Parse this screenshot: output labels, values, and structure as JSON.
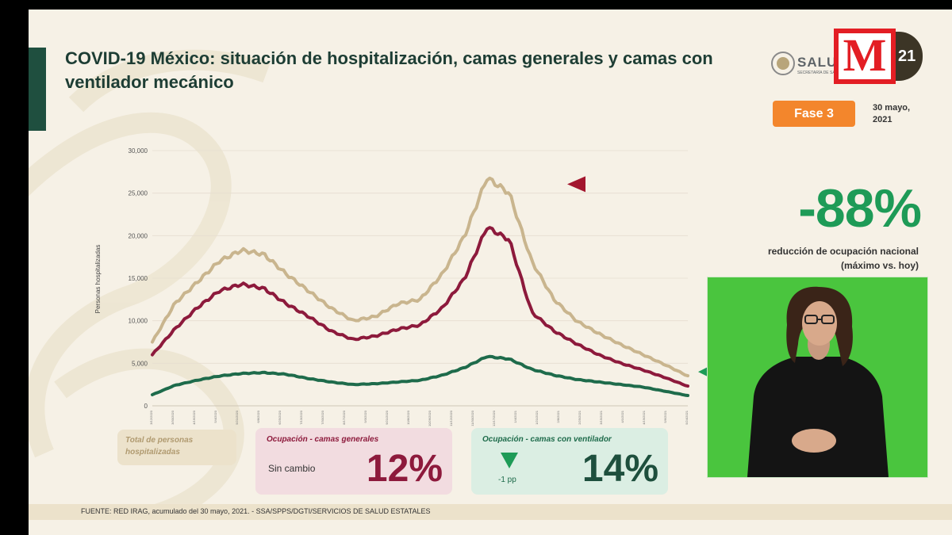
{
  "slide": {
    "title": "COVID-19 México: situación de hospitalización, camas generales y camas con ventilador mecánico",
    "logo_text": "SALUD",
    "logo_subtext": "SECRETARÍA DE SALUD",
    "phase": "Fase 3",
    "date": "30 mayo, 2021",
    "big_percentage": "-88%",
    "big_caption_line1": "reducción de ocupación nacional",
    "big_caption_line2": "(máximo vs. hoy)",
    "footer": "FUENTE: RED IRAG, acumulado del 30 mayo, 2021.  -  SSA/SPPS/DGTI/SERVICIOS DE SALUD ESTATALES"
  },
  "cards": {
    "total_label": "Total de personas hospitalizadas",
    "general_title": "Ocupación - camas generales",
    "general_status": "Sin cambio",
    "general_pct": "12%",
    "vent_title": "Ocupación - camas con ventilador",
    "vent_change": "-1 pp",
    "vent_pct": "14%"
  },
  "broadcast": {
    "channel_letter": "M",
    "bug_number": "21"
  },
  "colors": {
    "total": "#c9b58e",
    "general": "#8d1a3c",
    "ventilator": "#1e6b4b",
    "accent_green": "#1e9b57",
    "phase_orange": "#f3862c",
    "marker_red": "#a3162e"
  },
  "chart_data": {
    "type": "line",
    "ylabel": "Personas hospitalizadas",
    "ylim": [
      0,
      30000
    ],
    "y_ticks": [
      "30,000",
      "25,000",
      "20,000",
      "15,000",
      "10,000",
      "5,000",
      "0"
    ],
    "x_tick_labels": [
      "3/12/2020",
      "3/30/2020",
      "4/16/2020",
      "5/4/2020",
      "5/21/2020",
      "6/8/2020",
      "6/25/2020",
      "7/13/2020",
      "7/30/2020",
      "8/17/2020",
      "9/3/2020",
      "9/21/2020",
      "10/8/2020",
      "10/26/2020",
      "11/12/2020",
      "11/30/2020",
      "12/17/2020",
      "1/4/2021",
      "1/21/2021",
      "2/8/2021",
      "2/25/2021",
      "3/15/2021",
      "4/1/2021",
      "4/19/2021",
      "5/6/2021",
      "5/24/2021"
    ],
    "x_range": [
      "3/12/2020",
      "5/30/2021"
    ],
    "series": [
      {
        "name": "Total de personas hospitalizadas",
        "values": [
          7500,
          12000,
          14500,
          17000,
          18300,
          17800,
          15500,
          13500,
          11500,
          10000,
          10500,
          12000,
          12500,
          15500,
          20000,
          26800,
          25000,
          17000,
          12500,
          10000,
          8500,
          7200,
          6000,
          4800,
          3500
        ]
      },
      {
        "name": "Ocupación - camas generales",
        "values": [
          6000,
          9000,
          11500,
          13500,
          14300,
          13800,
          12000,
          10500,
          8800,
          7800,
          8200,
          9000,
          9500,
          11500,
          15000,
          21000,
          19500,
          11000,
          8800,
          7300,
          6000,
          5000,
          4200,
          3300,
          2300
        ]
      },
      {
        "name": "Ocupación - camas con ventilador",
        "values": [
          1300,
          2400,
          3000,
          3500,
          3800,
          3900,
          3700,
          3200,
          2800,
          2500,
          2600,
          2800,
          3000,
          3600,
          4500,
          5800,
          5500,
          4300,
          3600,
          3100,
          2800,
          2500,
          2200,
          1700,
          1200
        ]
      }
    ]
  }
}
